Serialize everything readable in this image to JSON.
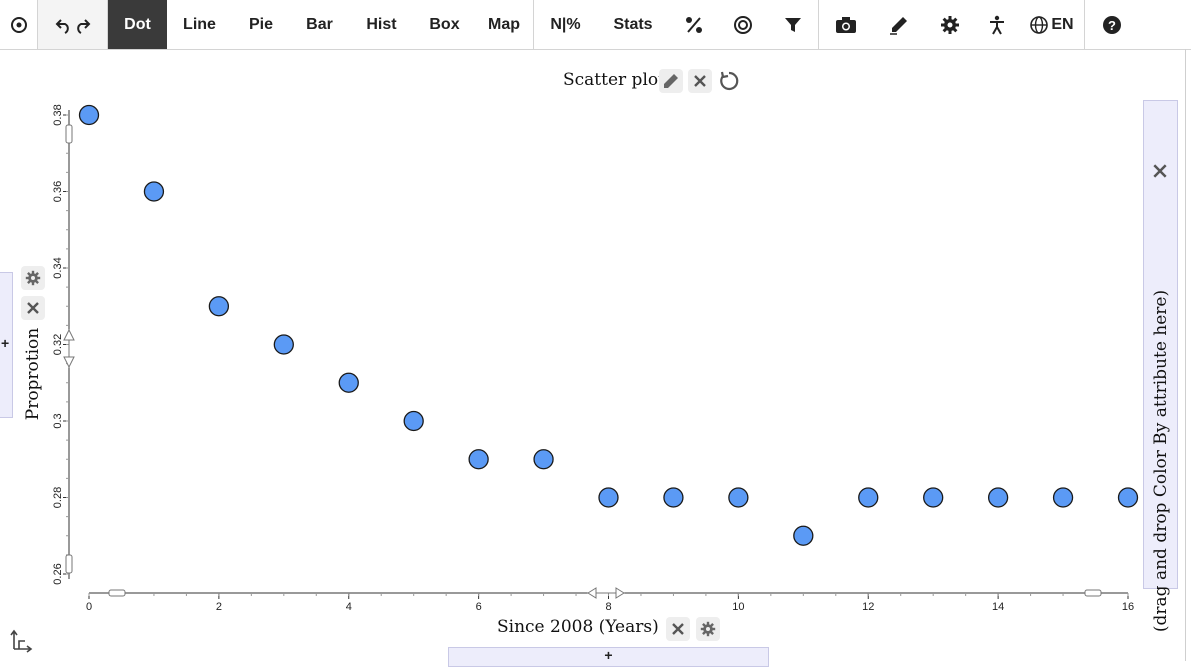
{
  "toolbar": {
    "buttons": [
      {
        "id": "target",
        "icon": "target-icon"
      },
      {
        "id": "undo-redo",
        "icon": "undo-redo-icon"
      },
      {
        "id": "dot",
        "label": "Dot",
        "active": true
      },
      {
        "id": "line",
        "label": "Line"
      },
      {
        "id": "pie",
        "label": "Pie"
      },
      {
        "id": "bar",
        "label": "Bar"
      },
      {
        "id": "hist",
        "label": "Hist"
      },
      {
        "id": "box",
        "label": "Box"
      },
      {
        "id": "map",
        "label": "Map"
      },
      {
        "id": "n-percent",
        "label": "N|%"
      },
      {
        "id": "stats",
        "label": "Stats"
      },
      {
        "id": "percent",
        "icon": "percent-icon"
      },
      {
        "id": "circle",
        "icon": "circle-icon"
      },
      {
        "id": "filter",
        "icon": "filter-icon"
      },
      {
        "id": "camera",
        "icon": "camera-icon"
      },
      {
        "id": "pen",
        "icon": "pen-icon"
      },
      {
        "id": "gear",
        "icon": "gear-icon"
      },
      {
        "id": "accessibility",
        "icon": "accessibility-icon"
      },
      {
        "id": "language",
        "icon": "globe-icon",
        "label": "EN"
      },
      {
        "id": "help",
        "icon": "help-icon"
      }
    ]
  },
  "plot": {
    "title": "Scatter plot",
    "color_drop_hint": "(drag and drop Color By attribute here)",
    "left_drop_label": "+",
    "bottom_drop_label": "+"
  },
  "chart_data": {
    "type": "scatter",
    "xlabel": "Since 2008 (Years)",
    "ylabel": "Proprotion",
    "xlim": [
      0,
      16
    ],
    "ylim": [
      0.26,
      0.38
    ],
    "x_ticks": [
      "0",
      "2",
      "4",
      "6",
      "8",
      "10",
      "12",
      "14",
      "16"
    ],
    "y_ticks": [
      "0.26",
      "0.28",
      "0.3",
      "0.32",
      "0.34",
      "0.36",
      "0.38"
    ],
    "points": [
      {
        "x": 0,
        "y": 0.38
      },
      {
        "x": 1,
        "y": 0.36
      },
      {
        "x": 2,
        "y": 0.33
      },
      {
        "x": 3,
        "y": 0.32
      },
      {
        "x": 4,
        "y": 0.31
      },
      {
        "x": 5,
        "y": 0.3
      },
      {
        "x": 6,
        "y": 0.29
      },
      {
        "x": 7,
        "y": 0.29
      },
      {
        "x": 8,
        "y": 0.28
      },
      {
        "x": 9,
        "y": 0.28
      },
      {
        "x": 10,
        "y": 0.28
      },
      {
        "x": 11,
        "y": 0.27
      },
      {
        "x": 12,
        "y": 0.28
      },
      {
        "x": 13,
        "y": 0.28
      },
      {
        "x": 14,
        "y": 0.28
      },
      {
        "x": 15,
        "y": 0.28
      },
      {
        "x": 16,
        "y": 0.28
      }
    ],
    "grid": false,
    "colors": {
      "point_fill": "#5b9af5",
      "point_stroke": "#1a1a1a",
      "axis": "#333333"
    }
  }
}
